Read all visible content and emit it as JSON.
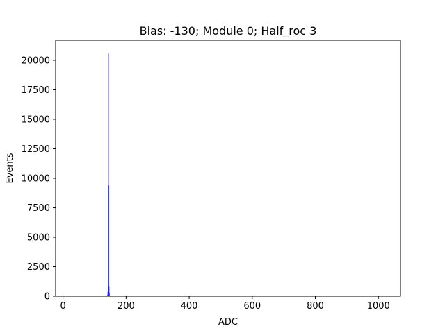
{
  "chart_data": {
    "type": "bar",
    "title": "Bias: -130; Module 0; Half_roc 3",
    "xlabel": "ADC",
    "ylabel": "Events",
    "xlim": [
      -23.4,
      1070
    ],
    "ylim": [
      0,
      21700
    ],
    "xticks": [
      0,
      200,
      400,
      600,
      800,
      1000
    ],
    "yticks": [
      0,
      2500,
      5000,
      7500,
      10000,
      12500,
      15000,
      17500,
      20000
    ],
    "grid": false,
    "bar_color": "#0000ff",
    "bin_width": 1,
    "x": [
      139,
      140,
      141,
      142,
      143,
      144,
      145,
      146,
      147,
      148,
      149
    ],
    "values": [
      30,
      120,
      350,
      800,
      20600,
      9400,
      850,
      260,
      60,
      15,
      5
    ]
  }
}
